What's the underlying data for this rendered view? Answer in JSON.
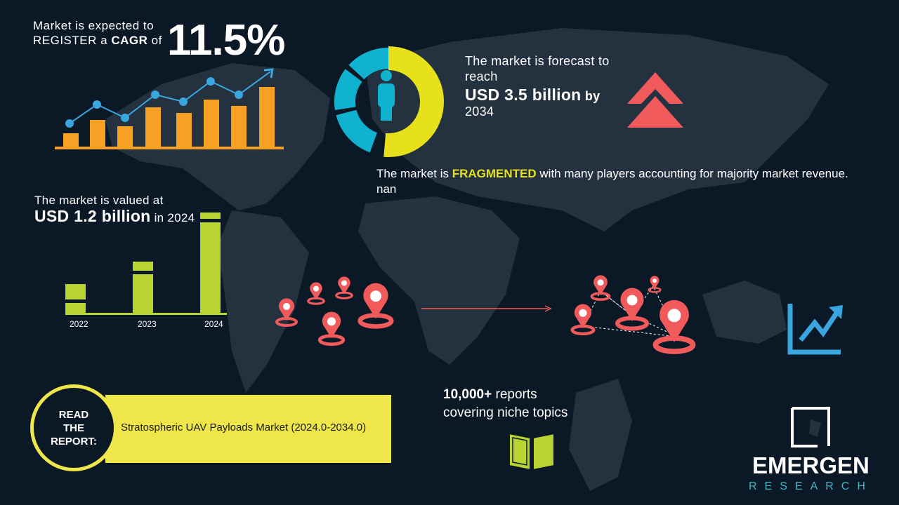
{
  "cagr": {
    "line1": "Market is expected to",
    "line2_pre": "REGISTER a",
    "line2_bold": "CAGR",
    "line2_post": "of",
    "value": "11.5%"
  },
  "forecast": {
    "line1": "The market is forecast to reach",
    "amount": "USD 3.5 billion",
    "by": "by",
    "year": "2034"
  },
  "fragmented": {
    "pre": "The market is",
    "highlight": "FRAGMENTED",
    "post": "with many players accounting for majority market revenue. nan"
  },
  "valued": {
    "line1": "The market is valued at",
    "amount": "USD 1.2 billion",
    "post": "in 2024"
  },
  "bar_chart": {
    "categories": [
      "2022",
      "2023",
      "2024"
    ]
  },
  "reports": {
    "bold": "10,000+",
    "line1_rest": "reports",
    "line2": "covering niche topics"
  },
  "read_report": {
    "label_lines": [
      "READ",
      "THE",
      "REPORT:"
    ],
    "title": "Stratospheric UAV Payloads Market (2024.0-2034.0)"
  },
  "logo": {
    "name": "EMERGEN",
    "sub": "RESEARCH"
  },
  "colors": {
    "background": "#0b1826",
    "map": "#243240",
    "orange": "#f7a124",
    "blue": "#3aa6df",
    "yellow": "#e6e11a",
    "lime": "#b9d332",
    "red": "#f05a5b",
    "cyan": "#0fb3cf"
  }
}
